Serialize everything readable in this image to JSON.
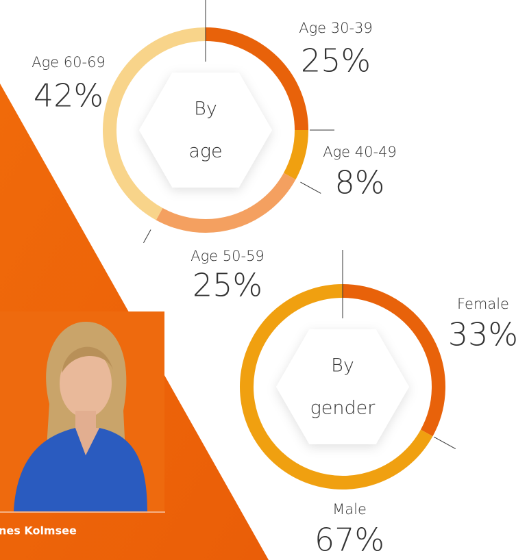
{
  "chart_data": [
    {
      "type": "donut",
      "title_lines": [
        "By",
        "age"
      ],
      "categories": [
        "Age 30-39",
        "Age 40-49",
        "Age 50-59",
        "Age 60-69"
      ],
      "values": [
        25,
        8,
        25,
        42
      ],
      "value_labels": [
        "25%",
        "8%",
        "25%",
        "42%"
      ],
      "colors": [
        "#e8620a",
        "#f0a010",
        "#f4a060",
        "#f8d48a"
      ]
    },
    {
      "type": "donut",
      "title_lines": [
        "By",
        "gender"
      ],
      "categories": [
        "Female",
        "Male"
      ],
      "values": [
        33,
        67
      ],
      "value_labels": [
        "33%",
        "67%"
      ],
      "colors": [
        "#e8620a",
        "#f0a010"
      ]
    }
  ],
  "profile": {
    "name": "nes Kolmsee"
  }
}
